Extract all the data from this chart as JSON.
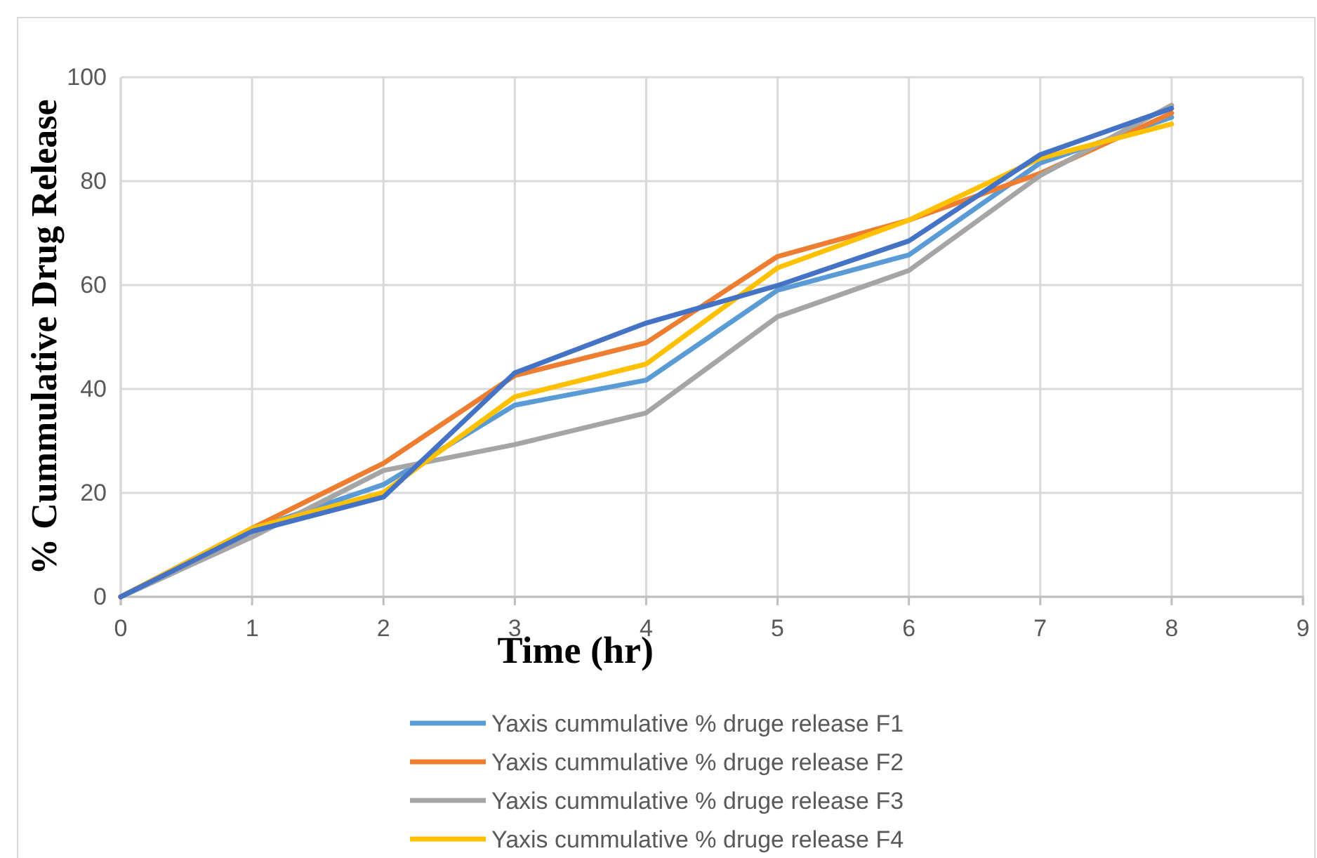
{
  "chart_data": {
    "type": "line",
    "xlabel": "Time (hr)",
    "ylabel": "% Cummulative Drug Release",
    "x": [
      0,
      1,
      2,
      3,
      4,
      5,
      6,
      7,
      8
    ],
    "xlim": [
      0,
      9
    ],
    "xticks": [
      0,
      1,
      2,
      3,
      4,
      5,
      6,
      7,
      8,
      9
    ],
    "ylim": [
      0,
      100
    ],
    "yticks": [
      0,
      20,
      40,
      60,
      80,
      100
    ],
    "grid": true,
    "legend": "bottom",
    "marker": "none",
    "line_style": "solid",
    "series": [
      {
        "name": "Yaxis cummulative % druge release F1",
        "color": "#5b9bd5",
        "values": [
          0,
          13,
          21.6,
          36.9,
          41.7,
          59.0,
          65.8,
          83.5,
          92.3
        ]
      },
      {
        "name": "Yaxis cummulative % druge release F2",
        "color": "#ed7d31",
        "values": [
          0,
          13.2,
          25.7,
          42.6,
          48.9,
          65.5,
          72.5,
          81.5,
          93.1
        ]
      },
      {
        "name": "Yaxis cummulative % druge release F3",
        "color": "#a5a5a5",
        "values": [
          0,
          11.5,
          24.3,
          29.3,
          35.4,
          53.9,
          62.8,
          81.1,
          94.6
        ]
      },
      {
        "name": "Yaxis cummulative % druge release F4",
        "color": "#ffc000",
        "values": [
          0,
          13.2,
          20.1,
          38.5,
          44.8,
          63.3,
          72.5,
          84.4,
          91.0
        ]
      },
      {
        "color": "#4472c4",
        "values": [
          0,
          12.6,
          19.2,
          43.1,
          52.7,
          59.9,
          68.5,
          85.1,
          94.0
        ]
      }
    ]
  }
}
